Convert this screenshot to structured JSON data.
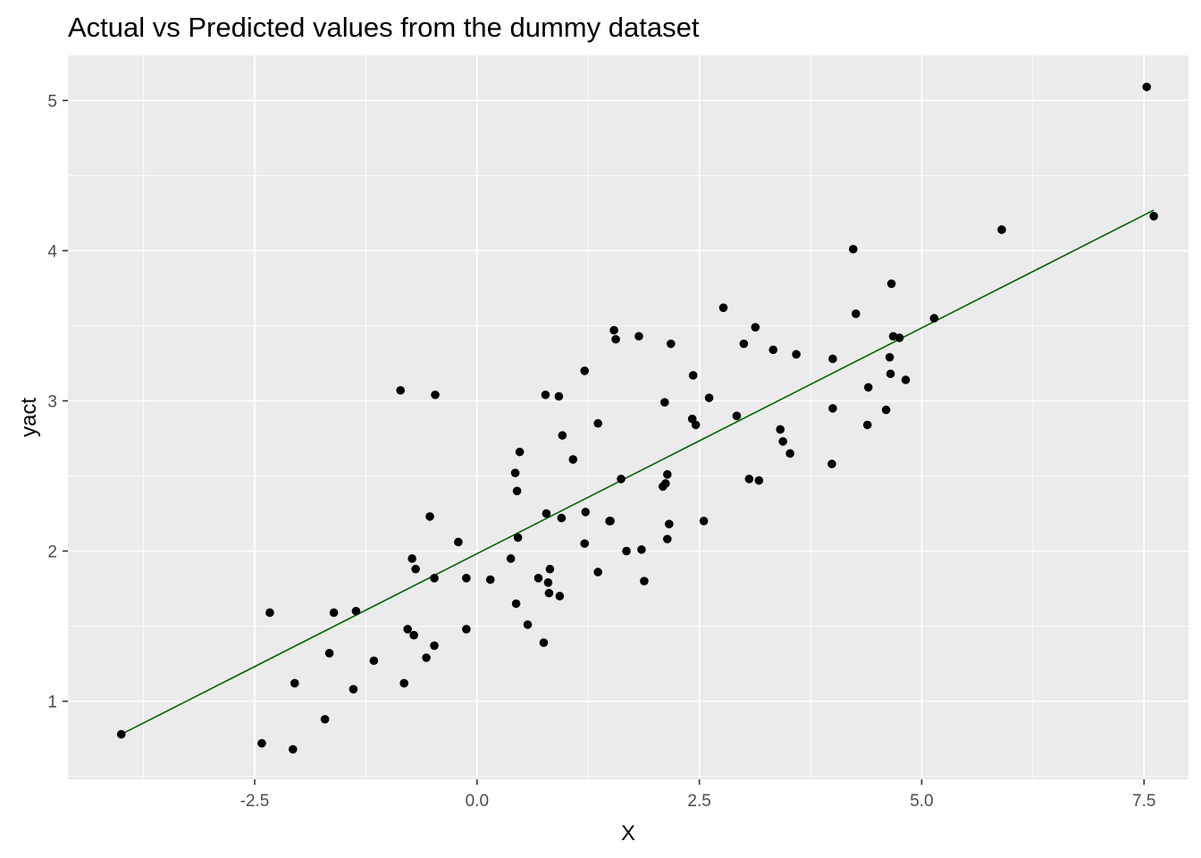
{
  "chart_data": {
    "type": "scatter",
    "title": "Actual vs Predicted values from the dummy dataset",
    "xlabel": "X",
    "ylabel": "yact",
    "xlim": [
      -4.6,
      8.0
    ],
    "ylim": [
      0.48,
      5.3
    ],
    "x_ticks": [
      -2.5,
      0.0,
      2.5,
      5.0,
      7.5
    ],
    "x_tick_labels": [
      "-2.5",
      "0.0",
      "2.5",
      "5.0",
      "7.5"
    ],
    "y_ticks": [
      1,
      2,
      3,
      4,
      5
    ],
    "y_tick_labels": [
      "1",
      "2",
      "3",
      "4",
      "5"
    ],
    "grid": true,
    "legend": "none",
    "colors": {
      "panel": "#ebebeb",
      "grid": "#ffffff",
      "points": "#000000",
      "line": "#006400"
    },
    "points": [
      {
        "x": -4.0,
        "y": 0.78
      },
      {
        "x": -2.42,
        "y": 0.72
      },
      {
        "x": -2.33,
        "y": 1.59
      },
      {
        "x": -2.05,
        "y": 1.12
      },
      {
        "x": -2.07,
        "y": 0.68
      },
      {
        "x": -1.71,
        "y": 0.88
      },
      {
        "x": -1.66,
        "y": 1.32
      },
      {
        "x": -1.61,
        "y": 1.59
      },
      {
        "x": -1.39,
        "y": 1.08
      },
      {
        "x": -1.36,
        "y": 1.6
      },
      {
        "x": -1.16,
        "y": 1.27
      },
      {
        "x": -0.86,
        "y": 3.07
      },
      {
        "x": -0.82,
        "y": 1.12
      },
      {
        "x": -0.78,
        "y": 1.48
      },
      {
        "x": -0.73,
        "y": 1.95
      },
      {
        "x": -0.71,
        "y": 1.44
      },
      {
        "x": -0.69,
        "y": 1.88
      },
      {
        "x": -0.57,
        "y": 1.29
      },
      {
        "x": -0.53,
        "y": 2.23
      },
      {
        "x": -0.48,
        "y": 1.82
      },
      {
        "x": -0.48,
        "y": 1.37
      },
      {
        "x": -0.47,
        "y": 3.04
      },
      {
        "x": -0.21,
        "y": 2.06
      },
      {
        "x": -0.12,
        "y": 1.82
      },
      {
        "x": -0.12,
        "y": 1.48
      },
      {
        "x": 0.15,
        "y": 1.81
      },
      {
        "x": 0.38,
        "y": 1.95
      },
      {
        "x": 0.43,
        "y": 2.52
      },
      {
        "x": 0.44,
        "y": 1.65
      },
      {
        "x": 0.45,
        "y": 2.4
      },
      {
        "x": 0.46,
        "y": 2.09
      },
      {
        "x": 0.48,
        "y": 2.66
      },
      {
        "x": 0.57,
        "y": 1.51
      },
      {
        "x": 0.69,
        "y": 1.82
      },
      {
        "x": 0.75,
        "y": 1.39
      },
      {
        "x": 0.77,
        "y": 3.04
      },
      {
        "x": 0.78,
        "y": 2.25
      },
      {
        "x": 0.8,
        "y": 1.79
      },
      {
        "x": 0.81,
        "y": 1.72
      },
      {
        "x": 0.82,
        "y": 1.88
      },
      {
        "x": 0.92,
        "y": 3.03
      },
      {
        "x": 0.93,
        "y": 1.7
      },
      {
        "x": 0.95,
        "y": 2.22
      },
      {
        "x": 0.96,
        "y": 2.77
      },
      {
        "x": 1.08,
        "y": 2.61
      },
      {
        "x": 1.21,
        "y": 3.2
      },
      {
        "x": 1.21,
        "y": 2.05
      },
      {
        "x": 1.22,
        "y": 2.26
      },
      {
        "x": 1.36,
        "y": 1.86
      },
      {
        "x": 1.36,
        "y": 2.85
      },
      {
        "x": 1.49,
        "y": 2.2
      },
      {
        "x": 1.5,
        "y": 2.2
      },
      {
        "x": 1.54,
        "y": 3.47
      },
      {
        "x": 1.56,
        "y": 3.41
      },
      {
        "x": 1.62,
        "y": 2.48
      },
      {
        "x": 1.68,
        "y": 2.0
      },
      {
        "x": 1.82,
        "y": 3.43
      },
      {
        "x": 1.85,
        "y": 2.01
      },
      {
        "x": 1.88,
        "y": 1.8
      },
      {
        "x": 2.09,
        "y": 2.43
      },
      {
        "x": 2.11,
        "y": 2.99
      },
      {
        "x": 2.12,
        "y": 2.45
      },
      {
        "x": 2.14,
        "y": 2.08
      },
      {
        "x": 2.14,
        "y": 2.51
      },
      {
        "x": 2.16,
        "y": 2.18
      },
      {
        "x": 2.18,
        "y": 3.38
      },
      {
        "x": 2.42,
        "y": 2.88
      },
      {
        "x": 2.43,
        "y": 3.17
      },
      {
        "x": 2.46,
        "y": 2.84
      },
      {
        "x": 2.55,
        "y": 2.2
      },
      {
        "x": 2.61,
        "y": 3.02
      },
      {
        "x": 2.77,
        "y": 3.62
      },
      {
        "x": 2.92,
        "y": 2.9
      },
      {
        "x": 3.0,
        "y": 3.38
      },
      {
        "x": 3.06,
        "y": 2.48
      },
      {
        "x": 3.13,
        "y": 3.49
      },
      {
        "x": 3.17,
        "y": 2.47
      },
      {
        "x": 3.33,
        "y": 3.34
      },
      {
        "x": 3.41,
        "y": 2.81
      },
      {
        "x": 3.44,
        "y": 2.73
      },
      {
        "x": 3.52,
        "y": 2.65
      },
      {
        "x": 3.59,
        "y": 3.31
      },
      {
        "x": 3.99,
        "y": 2.58
      },
      {
        "x": 4.0,
        "y": 3.28
      },
      {
        "x": 4.0,
        "y": 2.95
      },
      {
        "x": 4.23,
        "y": 4.01
      },
      {
        "x": 4.26,
        "y": 3.58
      },
      {
        "x": 4.39,
        "y": 2.84
      },
      {
        "x": 4.4,
        "y": 3.09
      },
      {
        "x": 4.6,
        "y": 2.94
      },
      {
        "x": 4.64,
        "y": 3.29
      },
      {
        "x": 4.65,
        "y": 3.18
      },
      {
        "x": 4.66,
        "y": 3.78
      },
      {
        "x": 4.68,
        "y": 3.43
      },
      {
        "x": 4.75,
        "y": 3.42
      },
      {
        "x": 4.82,
        "y": 3.14
      },
      {
        "x": 5.14,
        "y": 3.55
      },
      {
        "x": 5.9,
        "y": 4.14
      },
      {
        "x": 7.53,
        "y": 5.09
      },
      {
        "x": 7.61,
        "y": 4.23
      }
    ],
    "fit_line": {
      "x": [
        -4.0,
        7.61
      ],
      "y": [
        0.78,
        4.27
      ]
    }
  }
}
